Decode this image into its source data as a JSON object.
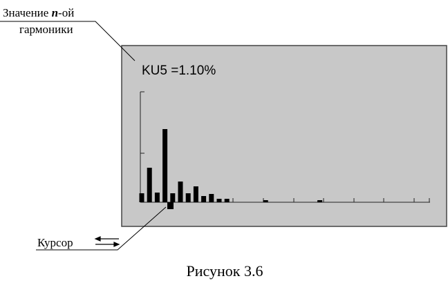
{
  "chart_data": {
    "type": "bar",
    "title": "KU5 =1.10%",
    "values": [
      13,
      50,
      14,
      106,
      13,
      30,
      13,
      23,
      9,
      12,
      5,
      5,
      0,
      0,
      0,
      0,
      3,
      0,
      0,
      0,
      0,
      0,
      0,
      3,
      0,
      0,
      0,
      0,
      0,
      0,
      0,
      0,
      0,
      0,
      0,
      0,
      0,
      0
    ],
    "color": "#000000",
    "ylim": [
      0,
      160
    ],
    "yticks": [
      71,
      160
    ]
  },
  "annotations": {
    "harmonic_value": {
      "before": "Значение ",
      "variable": "n",
      "after": "-ой",
      "line2": "гармоники"
    },
    "cursor": "Курсор"
  },
  "caption": "Рисунок 3.6"
}
